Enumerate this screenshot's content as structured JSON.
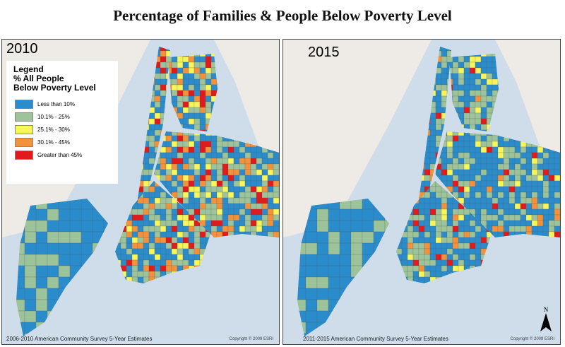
{
  "title": "Percentage of Families & People Below Poverty Level",
  "panels": [
    {
      "year": "2010",
      "source": "2006-2010 American Community Survey 5-Year Estimates",
      "copyright": "Copyright © 2009 ESRI"
    },
    {
      "year": "2015",
      "source": "2011-2015 American Community Survey 5-Year Estimates",
      "copyright": "Copyright © 2009 ESRI"
    }
  ],
  "legend": {
    "title": "Legend",
    "subtitle1": "% All People",
    "subtitle2": "Below Poverty Level",
    "items": [
      {
        "label": "Less than 10%",
        "color": "#2b8ccb"
      },
      {
        "label": "10.1% - 25%",
        "color": "#9cc39a"
      },
      {
        "label": "25.1% - 30%",
        "color": "#f6f55a"
      },
      {
        "label": "30.1% - 45%",
        "color": "#f3923a"
      },
      {
        "label": "Greater than 45%",
        "color": "#e31a1c"
      }
    ]
  },
  "north_label": "N"
}
